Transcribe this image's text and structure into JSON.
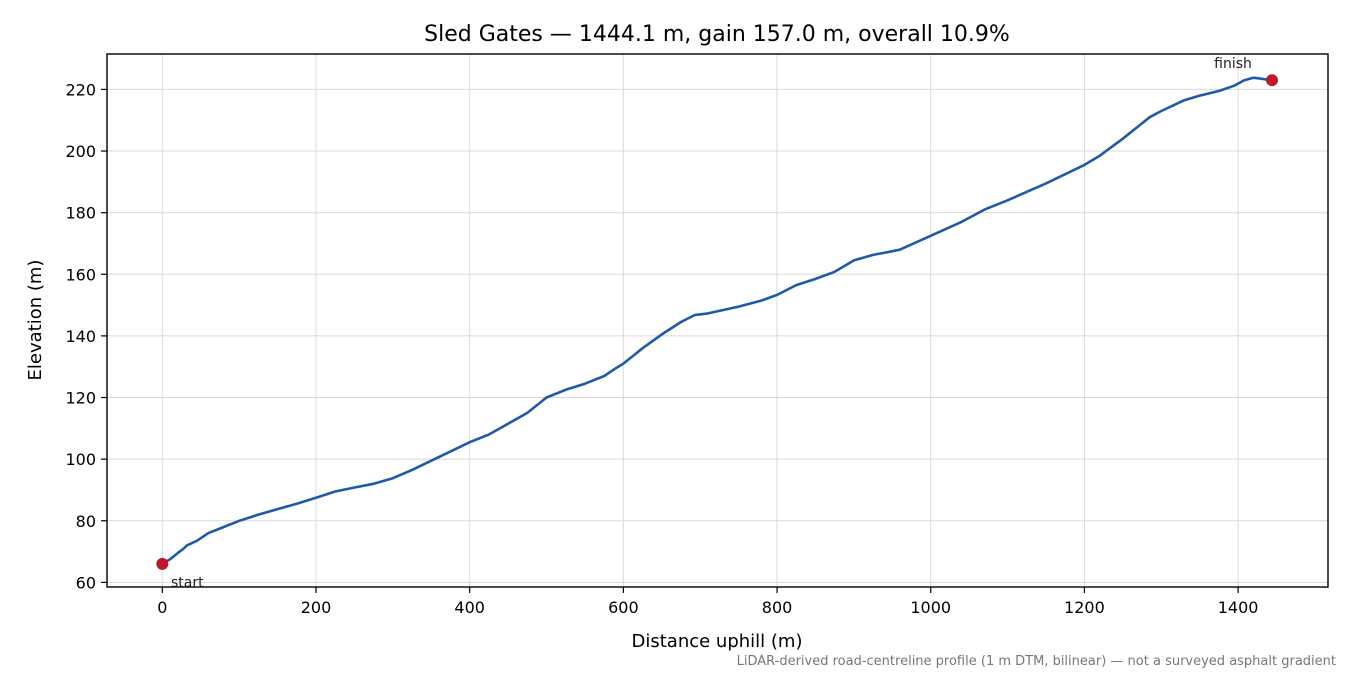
{
  "chart_data": {
    "type": "line",
    "title": "Sled Gates — 1444.1 m, gain 157.0 m, overall 10.9%",
    "xlabel": "Distance uphill (m)",
    "ylabel": "Elevation (m)",
    "xlim": [
      -72,
      1517
    ],
    "ylim": [
      58.5,
      231.5
    ],
    "xticks": [
      0,
      200,
      400,
      600,
      800,
      1000,
      1200,
      1400
    ],
    "yticks": [
      60,
      80,
      100,
      120,
      140,
      160,
      180,
      200,
      220
    ],
    "grid": true,
    "line_color": "#1f5aa8",
    "marker_color": "#c0182a",
    "series": [
      {
        "x": [
          0,
          10,
          20,
          28,
          32,
          45,
          60,
          75,
          100,
          125,
          150,
          175,
          200,
          225,
          250,
          275,
          300,
          325,
          350,
          375,
          400,
          425,
          450,
          475,
          500,
          525,
          550,
          575,
          590,
          600,
          625,
          650,
          675,
          693,
          710,
          750,
          780,
          800,
          825,
          850,
          875,
          900,
          925,
          950,
          960,
          1000,
          1040,
          1070,
          1100,
          1150,
          1200,
          1220,
          1250,
          1285,
          1300,
          1330,
          1350,
          1375,
          1395,
          1408,
          1420,
          1444.1
        ],
        "y": [
          66,
          67.5,
          69.5,
          71,
          72,
          73.5,
          76,
          77.5,
          80,
          82,
          83.8,
          85.5,
          87.5,
          89.5,
          90.8,
          92,
          93.8,
          96.5,
          99.5,
          102.5,
          105.5,
          108,
          111.5,
          115,
          120,
          122.5,
          124.5,
          127,
          129.5,
          131,
          136,
          140.5,
          144.5,
          146.8,
          147.3,
          149.5,
          151.5,
          153.3,
          156.5,
          158.5,
          160.8,
          164.5,
          166.3,
          167.5,
          168,
          172.5,
          177,
          181,
          184,
          189.5,
          195.5,
          198.5,
          204,
          211,
          213,
          216.5,
          218,
          219.5,
          221.2,
          223,
          223.8,
          223
        ]
      }
    ],
    "annotations": [
      {
        "text": "start",
        "x": 0,
        "y": 66
      },
      {
        "text": "finish",
        "x": 1444.1,
        "y": 223
      }
    ],
    "footnote": "LiDAR-derived road-centreline profile (1 m DTM, bilinear) — not a surveyed asphalt gradient"
  }
}
